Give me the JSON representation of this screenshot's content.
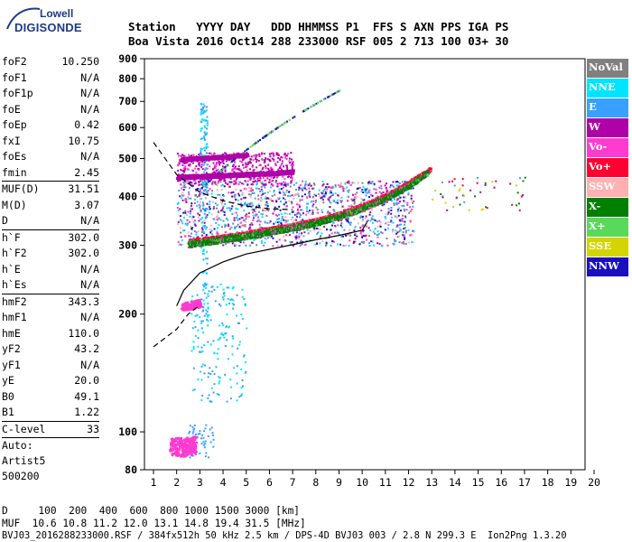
{
  "logo": {
    "line1": "Lowell",
    "line2": "DIGISONDE"
  },
  "header": {
    "line1": "Station   YYYY DAY   DDD HHMMSS P1  FFS S AXN PPS IGA PS",
    "line2": "Boa Vista 2016 Oct14 288 233000 RSF 005 2 713 100 03+ 30"
  },
  "params": {
    "group1": [
      {
        "label": "foF2",
        "value": "10.250"
      },
      {
        "label": "foF1",
        "value": "N/A"
      },
      {
        "label": "foF1p",
        "value": "N/A"
      },
      {
        "label": "foE",
        "value": "N/A"
      },
      {
        "label": "foEp",
        "value": "0.42"
      },
      {
        "label": "fxI",
        "value": "10.75"
      },
      {
        "label": "foEs",
        "value": "N/A"
      },
      {
        "label": "fmin",
        "value": "2.45"
      }
    ],
    "group2": [
      {
        "label": "MUF(D)",
        "value": "31.51"
      },
      {
        "label": "M(D)",
        "value": "3.07"
      },
      {
        "label": "D",
        "value": "N/A"
      }
    ],
    "group3": [
      {
        "label": "h`F",
        "value": "302.0"
      },
      {
        "label": "h`F2",
        "value": "302.0"
      },
      {
        "label": "h`E",
        "value": "N/A"
      },
      {
        "label": "h`Es",
        "value": "N/A"
      }
    ],
    "group4": [
      {
        "label": "hmF2",
        "value": "343.3"
      },
      {
        "label": "hmF1",
        "value": "N/A"
      },
      {
        "label": "hmE",
        "value": "110.0"
      },
      {
        "label": "yF2",
        "value": "43.2"
      },
      {
        "label": "yF1",
        "value": "N/A"
      },
      {
        "label": "yE",
        "value": "20.0"
      },
      {
        "label": "B0",
        "value": "49.1"
      },
      {
        "label": "B1",
        "value": "1.22"
      }
    ],
    "group5": [
      {
        "label": "C-level",
        "value": "33"
      }
    ],
    "auto_label": "Auto:",
    "artist": "Artist5",
    "version": "500200"
  },
  "bottom": {
    "d_line": "D     100  200  400  600  800 1000 1500 3000 [km]",
    "muf_line": "MUF  10.6 10.8 11.2 12.0 13.1 14.8 19.4 31.5 [MHz]",
    "file_line": "BVJ03_2016288233000.RSF / 384fx512h 50 kHz 2.5 km / DPS-4D BVJ03 003 / 2.8 N 299.3 E  Ion2Png 1.3.20"
  },
  "legend": [
    {
      "label": "NoVal",
      "color": "#808080"
    },
    {
      "label": "NNE",
      "color": "#00e5ff"
    },
    {
      "label": "E",
      "color": "#3aa0ff"
    },
    {
      "label": "W",
      "color": "#b000a8"
    },
    {
      "label": "Vo-",
      "color": "#ff3bd0"
    },
    {
      "label": "Vo+",
      "color": "#ff0033"
    },
    {
      "label": "SSW",
      "color": "#ffb0b0"
    },
    {
      "label": "X-",
      "color": "#008000"
    },
    {
      "label": "X+",
      "color": "#5ad85a"
    },
    {
      "label": "SSE",
      "color": "#d4d400"
    },
    {
      "label": "NNW",
      "color": "#1a10c0"
    }
  ],
  "chart_data": {
    "type": "scatter",
    "xlabel": "",
    "ylabel": "",
    "xlim": [
      1,
      20
    ],
    "ylim": [
      80,
      900
    ],
    "y_scale": "log",
    "x_ticks": [
      1,
      2,
      3,
      4,
      5,
      6,
      7,
      8,
      9,
      10,
      11,
      12,
      13,
      14,
      15,
      16,
      17,
      18,
      19,
      20
    ],
    "y_ticks": [
      80,
      100,
      200,
      300,
      400,
      500,
      600,
      700,
      800,
      900
    ],
    "grid": false,
    "legend_position": "right",
    "series": [
      {
        "name": "Vo+",
        "trace": [
          [
            2.5,
            307
          ],
          [
            3,
            310
          ],
          [
            4,
            315
          ],
          [
            5,
            322
          ],
          [
            6,
            330
          ],
          [
            7,
            338
          ],
          [
            8,
            348
          ],
          [
            9,
            362
          ],
          [
            10,
            380
          ],
          [
            11,
            403
          ],
          [
            12,
            435
          ],
          [
            12.5,
            455
          ],
          [
            12.9,
            470
          ]
        ]
      },
      {
        "name": "X-",
        "trace": [
          [
            2.5,
            303
          ],
          [
            3,
            306
          ],
          [
            4,
            312
          ],
          [
            5,
            318
          ],
          [
            6,
            326
          ],
          [
            7,
            334
          ],
          [
            8,
            344
          ],
          [
            9,
            357
          ],
          [
            10,
            374
          ],
          [
            11,
            397
          ],
          [
            12,
            428
          ],
          [
            12.8,
            462
          ]
        ]
      },
      {
        "name": "Vo-",
        "trace": [
          [
            2.2,
            210
          ],
          [
            2.6,
            212
          ],
          [
            3,
            214
          ]
        ]
      },
      {
        "name": "Vo-",
        "trace": [
          [
            1.7,
            92
          ],
          [
            2.3,
            92
          ],
          [
            2.8,
            93
          ]
        ]
      },
      {
        "name": "W",
        "trace": [
          [
            2,
            450
          ],
          [
            4,
            455
          ],
          [
            6,
            460
          ],
          [
            7,
            465
          ]
        ]
      },
      {
        "name": "W",
        "trace": [
          [
            2.2,
            500
          ],
          [
            3.5,
            505
          ],
          [
            5,
            512
          ]
        ]
      }
    ],
    "profile_solid": [
      [
        2,
        210
      ],
      [
        2.3,
        230
      ],
      [
        3,
        255
      ],
      [
        4,
        272
      ],
      [
        5,
        285
      ],
      [
        6,
        293
      ],
      [
        7,
        301
      ],
      [
        8,
        310
      ],
      [
        9,
        318
      ],
      [
        10,
        328
      ],
      [
        10.2,
        343
      ]
    ],
    "profile_dashed": [
      [
        1,
        550
      ],
      [
        2,
        455
      ],
      [
        3,
        410
      ],
      [
        4,
        390
      ],
      [
        5,
        378
      ],
      [
        6,
        372
      ],
      [
        7,
        370
      ]
    ],
    "profile_dashed_low": [
      [
        1,
        165
      ],
      [
        2,
        183
      ],
      [
        2.5,
        200
      ],
      [
        3,
        211
      ]
    ]
  }
}
